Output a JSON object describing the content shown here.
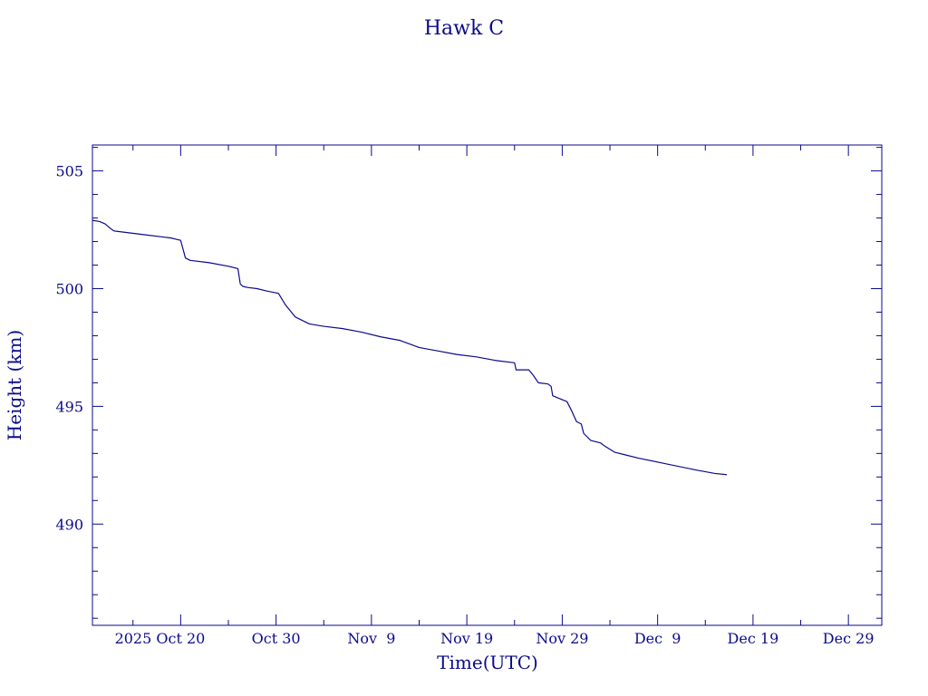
{
  "chart_data": {
    "type": "line",
    "title": "Hawk C",
    "xlabel": "Time(UTC)",
    "ylabel": "Height (km)",
    "x_tick_labels": [
      "2025 Oct 20",
      "Oct 30",
      "Nov  9",
      "Nov 19",
      "Nov 29",
      "Dec  9",
      "Dec 19",
      "Dec 29"
    ],
    "x_tick_dates": [
      "2025-10-20",
      "2025-10-30",
      "2025-11-09",
      "2025-11-19",
      "2025-11-29",
      "2025-12-09",
      "2025-12-19",
      "2025-12-29"
    ],
    "xlim": [
      "2025-10-10T18:00",
      "2026-01-01T12:00"
    ],
    "ylim": [
      485.7,
      506.1
    ],
    "y_ticks": [
      490,
      495,
      500,
      505
    ],
    "grid": false,
    "color": "#0a0a8c",
    "series": [
      {
        "x": [
          "2025-10-10T18:00",
          "2025-10-11T12:00",
          "2025-10-12T02:00",
          "2025-10-12T12:00",
          "2025-10-13T00:00",
          "2025-10-14T00:00",
          "2025-10-16T00:00",
          "2025-10-18T00:00",
          "2025-10-19T00:00",
          "2025-10-19T12:00",
          "2025-10-20T00:00",
          "2025-10-20T12:00",
          "2025-10-21T00:00",
          "2025-10-23T00:00",
          "2025-10-25T00:00",
          "2025-10-26T00:00",
          "2025-10-26T06:00",
          "2025-10-26T12:00",
          "2025-10-27T00:00",
          "2025-10-28T00:00",
          "2025-10-29T00:00",
          "2025-10-30T06:00",
          "2025-10-31T00:00",
          "2025-11-01T00:00",
          "2025-11-02T12:00",
          "2025-11-04T00:00",
          "2025-11-06T00:00",
          "2025-11-08T00:00",
          "2025-11-10T00:00",
          "2025-11-12T00:00",
          "2025-11-14T00:00",
          "2025-11-16T00:00",
          "2025-11-18T00:00",
          "2025-11-20T00:00",
          "2025-11-22T00:00",
          "2025-11-24T00:00",
          "2025-11-24T04:00",
          "2025-11-25T12:00",
          "2025-11-26T00:00",
          "2025-11-26T12:00",
          "2025-11-27T12:00",
          "2025-11-27T20:00",
          "2025-11-28T00:00",
          "2025-11-29T12:00",
          "2025-11-30T00:00",
          "2025-11-30T12:00",
          "2025-12-01T00:00",
          "2025-12-01T06:00",
          "2025-12-02T00:00",
          "2025-12-03T00:00",
          "2025-12-03T12:00",
          "2025-12-04T12:00",
          "2025-12-05T12:00",
          "2025-12-07T00:00",
          "2025-12-10T00:00",
          "2025-12-13T00:00",
          "2025-12-15T00:00",
          "2025-12-16T06:00"
        ],
        "values": [
          502.9,
          502.85,
          502.75,
          502.6,
          502.45,
          502.4,
          502.3,
          502.2,
          502.15,
          502.1,
          502.05,
          501.3,
          501.2,
          501.1,
          500.95,
          500.85,
          500.2,
          500.1,
          500.05,
          500.0,
          499.9,
          499.8,
          499.3,
          498.8,
          498.5,
          498.4,
          498.3,
          498.15,
          497.95,
          497.8,
          497.5,
          497.35,
          497.2,
          497.1,
          496.95,
          496.85,
          496.55,
          496.55,
          496.3,
          496.0,
          495.95,
          495.85,
          495.45,
          495.2,
          494.8,
          494.35,
          494.25,
          493.85,
          493.55,
          493.45,
          493.3,
          493.05,
          492.95,
          492.8,
          492.55,
          492.3,
          492.15,
          492.1
        ]
      }
    ]
  }
}
